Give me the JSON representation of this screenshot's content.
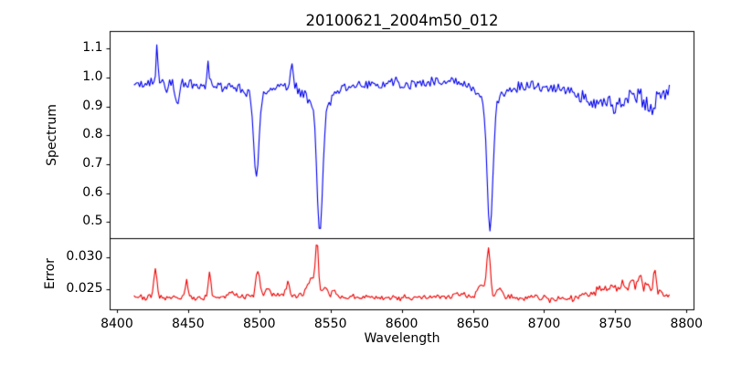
{
  "chart_data": {
    "type": "line",
    "title": "20100621_2004m50_012",
    "xlabel": "Wavelength",
    "legend": "none",
    "grid": false,
    "x": {
      "lim": [
        8394.9,
        8805.6
      ],
      "ticks": [
        8400,
        8450,
        8500,
        8550,
        8600,
        8650,
        8700,
        8750,
        8800
      ],
      "tick_labels": [
        "8400",
        "8450",
        "8500",
        "8550",
        "8600",
        "8650",
        "8700",
        "8750",
        "8800"
      ],
      "data_range": [
        8412,
        8788
      ],
      "sample_step": 1.0
    },
    "panels": [
      {
        "id": "spectrum",
        "ylabel": "Spectrum",
        "line_color": "#0000ee",
        "ylim": [
          0.4426,
          1.1594
        ],
        "yticks": [
          0.5,
          0.6,
          0.7,
          0.8,
          0.9,
          1.0,
          1.1
        ],
        "ytick_labels": [
          "0.5",
          "0.6",
          "0.7",
          "0.8",
          "0.9",
          "1.0",
          "1.1"
        ]
      },
      {
        "id": "error",
        "ylabel": "Error",
        "line_color": "#ee0000",
        "ylim": [
          0.0217,
          0.0329
        ],
        "yticks": [
          0.025,
          0.03
        ],
        "ytick_labels": [
          "0.025",
          "0.030"
        ]
      }
    ],
    "axis_color": "#000000",
    "background_color": "#ffffff",
    "noise_seed": 7,
    "spectrum_model": {
      "description": "normalized stellar spectrum, continuum ~0.97-0.99, Ca II triplet absorption",
      "continuum_anchors": [
        [
          8412,
          0.985
        ],
        [
          8420,
          0.975
        ],
        [
          8435,
          0.975
        ],
        [
          8455,
          0.972
        ],
        [
          8475,
          0.968
        ],
        [
          8490,
          0.97
        ],
        [
          8515,
          0.972
        ],
        [
          8535,
          0.975
        ],
        [
          8555,
          0.97
        ],
        [
          8575,
          0.975
        ],
        [
          8595,
          0.98
        ],
        [
          8615,
          0.985
        ],
        [
          8635,
          0.985
        ],
        [
          8655,
          0.98
        ],
        [
          8672,
          0.975
        ],
        [
          8690,
          0.972
        ],
        [
          8705,
          0.962
        ],
        [
          8718,
          0.955
        ],
        [
          8728,
          0.935
        ],
        [
          8736,
          0.905
        ],
        [
          8743,
          0.925
        ],
        [
          8750,
          0.885
        ],
        [
          8757,
          0.935
        ],
        [
          8764,
          0.945
        ],
        [
          8770,
          0.91
        ],
        [
          8776,
          0.895
        ],
        [
          8782,
          0.945
        ],
        [
          8788,
          0.975
        ]
      ],
      "absorption_lines": [
        {
          "center": 8442.5,
          "depth": 0.085,
          "sigma": 1.2,
          "wing_depth": 0.0,
          "wing_sigma": 1
        },
        {
          "center": 8498.0,
          "depth": 0.27,
          "sigma": 1.7,
          "wing_depth": 0.055,
          "wing_sigma": 5
        },
        {
          "center": 8542.5,
          "depth": 0.44,
          "sigma": 2.0,
          "wing_depth": 0.07,
          "wing_sigma": 9
        },
        {
          "center": 8662.0,
          "depth": 0.44,
          "sigma": 2.0,
          "wing_depth": 0.065,
          "wing_sigma": 8
        }
      ],
      "line_minima": {
        "8498": 0.65,
        "8542": 0.47,
        "8662": 0.47
      },
      "emission_spikes": [
        {
          "center": 8428,
          "height": 0.145,
          "sigma": 0.7
        },
        {
          "center": 8464,
          "height": 0.085,
          "sigma": 0.7
        },
        {
          "center": 8523,
          "height": 0.095,
          "sigma": 0.7
        }
      ],
      "noise_std_anchors": [
        [
          8412,
          0.0125
        ],
        [
          8440,
          0.0115
        ],
        [
          8470,
          0.0115
        ],
        [
          8500,
          0.011
        ],
        [
          8530,
          0.01
        ],
        [
          8560,
          0.0115
        ],
        [
          8590,
          0.0115
        ],
        [
          8620,
          0.0115
        ],
        [
          8650,
          0.01
        ],
        [
          8680,
          0.011
        ],
        [
          8705,
          0.012
        ],
        [
          8730,
          0.016
        ],
        [
          8755,
          0.018
        ],
        [
          8775,
          0.02
        ],
        [
          8788,
          0.018
        ]
      ]
    },
    "error_model": {
      "description": "error spectrum, baseline ~0.0237 with peaks at absorption-line wavelengths",
      "baseline_anchors": [
        [
          8412,
          0.0239
        ],
        [
          8418,
          0.0236
        ],
        [
          8435,
          0.0236
        ],
        [
          8460,
          0.0236
        ],
        [
          8490,
          0.0238
        ],
        [
          8515,
          0.024
        ],
        [
          8545,
          0.0238
        ],
        [
          8575,
          0.0236
        ],
        [
          8605,
          0.0236
        ],
        [
          8635,
          0.0238
        ],
        [
          8665,
          0.0238
        ],
        [
          8695,
          0.0236
        ],
        [
          8715,
          0.0236
        ],
        [
          8730,
          0.024
        ],
        [
          8742,
          0.0246
        ],
        [
          8752,
          0.0248
        ],
        [
          8760,
          0.025
        ],
        [
          8770,
          0.0248
        ],
        [
          8778,
          0.0248
        ],
        [
          8784,
          0.0242
        ],
        [
          8788,
          0.0238
        ]
      ],
      "peaks": [
        [
          8427,
          0.0045,
          1.0
        ],
        [
          8449,
          0.0027,
          0.9
        ],
        [
          8465,
          0.0041,
          0.9
        ],
        [
          8481,
          0.0008,
          1.5
        ],
        [
          8499,
          0.004,
          1.3
        ],
        [
          8506,
          0.0012,
          1.5
        ],
        [
          8520,
          0.0018,
          1.3
        ],
        [
          8536,
          0.0028,
          2.5
        ],
        [
          8540.5,
          0.008,
          1.1
        ],
        [
          8546,
          0.0016,
          1.6
        ],
        [
          8552,
          0.0011,
          1.3
        ],
        [
          8640,
          0.0007,
          3.0
        ],
        [
          8656,
          0.0018,
          2.5
        ],
        [
          8661,
          0.0078,
          1.2
        ],
        [
          8669,
          0.0013,
          1.8
        ],
        [
          8740,
          0.0008,
          1.5
        ],
        [
          8748,
          0.0008,
          1.2
        ],
        [
          8755,
          0.0012,
          1.2
        ],
        [
          8762,
          0.0014,
          1.2
        ],
        [
          8767,
          0.0024,
          1.1
        ],
        [
          8773,
          0.001,
          1.2
        ],
        [
          8778,
          0.0028,
          1.1
        ]
      ],
      "noise_std_anchors": [
        [
          8412,
          0.00022
        ],
        [
          8600,
          0.00022
        ],
        [
          8700,
          0.00028
        ],
        [
          8745,
          0.0004
        ],
        [
          8788,
          0.00035
        ]
      ]
    }
  }
}
